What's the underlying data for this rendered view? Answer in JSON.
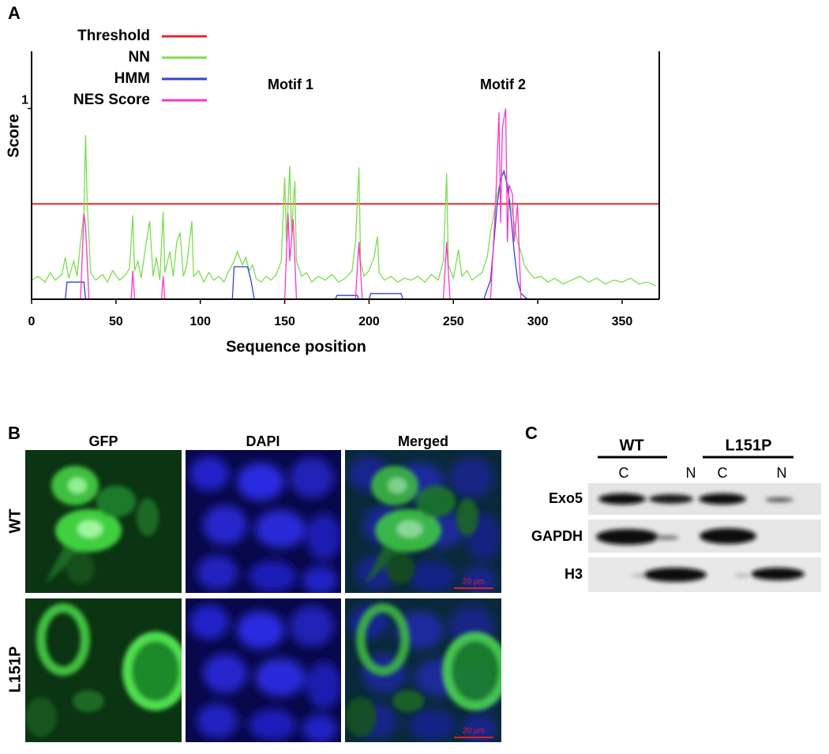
{
  "panel_labels": [
    "A",
    "B",
    "C"
  ],
  "chart_data": {
    "type": "line",
    "xlabel": "Sequence position",
    "ylabel": "Score",
    "xlim": [
      0,
      372
    ],
    "ylim": [
      0,
      1.3
    ],
    "xticks": [
      0,
      50,
      100,
      150,
      200,
      250,
      300,
      350
    ],
    "yticks": [
      1
    ],
    "annotations": [
      "Motif 1",
      "Motif 2"
    ],
    "series": [
      {
        "name": "Threshold",
        "color": "#e8262b",
        "x": [
          0,
          372
        ],
        "values": [
          0.5,
          0.5
        ]
      },
      {
        "name": "NN",
        "color": "#7ddc4f",
        "x": [
          0,
          4,
          8,
          11,
          14,
          18,
          20,
          22,
          25,
          27,
          29,
          31,
          32,
          33,
          35,
          38,
          42,
          45,
          48,
          52,
          55,
          58,
          60,
          61,
          63,
          65,
          68,
          70,
          72,
          74,
          76,
          78,
          79,
          82,
          84,
          86,
          88,
          90,
          92,
          95,
          96,
          99,
          102,
          105,
          108,
          111,
          114,
          117,
          120,
          122,
          125,
          127,
          129,
          131,
          133,
          136,
          139,
          142,
          145,
          148,
          150,
          151,
          153,
          154,
          156,
          157,
          160,
          163,
          166,
          170,
          174,
          178,
          182,
          186,
          190,
          192,
          194,
          195,
          197,
          200,
          203,
          205,
          206,
          209,
          213,
          217,
          221,
          225,
          229,
          233,
          237,
          241,
          244,
          246,
          247,
          250,
          253,
          255,
          258,
          261,
          264,
          267,
          270,
          272,
          274,
          276,
          278,
          280,
          282,
          284,
          286,
          288,
          290,
          292,
          295,
          298,
          302,
          306,
          310,
          315,
          320,
          325,
          330,
          335,
          340,
          345,
          350,
          355,
          360,
          365,
          370
        ],
        "values": [
          0.1,
          0.12,
          0.09,
          0.14,
          0.1,
          0.13,
          0.22,
          0.11,
          0.2,
          0.12,
          0.3,
          0.45,
          0.86,
          0.5,
          0.14,
          0.1,
          0.13,
          0.09,
          0.15,
          0.1,
          0.12,
          0.16,
          0.44,
          0.15,
          0.2,
          0.11,
          0.3,
          0.41,
          0.12,
          0.22,
          0.1,
          0.46,
          0.14,
          0.25,
          0.12,
          0.3,
          0.35,
          0.12,
          0.18,
          0.41,
          0.12,
          0.15,
          0.09,
          0.14,
          0.1,
          0.12,
          0.09,
          0.15,
          0.2,
          0.25,
          0.18,
          0.22,
          0.15,
          0.18,
          0.11,
          0.09,
          0.12,
          0.1,
          0.13,
          0.2,
          0.64,
          0.3,
          0.7,
          0.35,
          0.62,
          0.2,
          0.12,
          0.14,
          0.09,
          0.12,
          0.1,
          0.13,
          0.09,
          0.11,
          0.15,
          0.3,
          0.69,
          0.2,
          0.12,
          0.15,
          0.22,
          0.33,
          0.14,
          0.1,
          0.12,
          0.09,
          0.11,
          0.1,
          0.12,
          0.09,
          0.13,
          0.1,
          0.2,
          0.66,
          0.18,
          0.11,
          0.26,
          0.12,
          0.15,
          0.1,
          0.12,
          0.14,
          0.22,
          0.35,
          0.45,
          0.55,
          0.62,
          0.68,
          0.57,
          0.5,
          0.4,
          0.3,
          0.25,
          0.18,
          0.14,
          0.11,
          0.12,
          0.09,
          0.11,
          0.08,
          0.1,
          0.12,
          0.09,
          0.11,
          0.08,
          0.1,
          0.09,
          0.11,
          0.08,
          0.09,
          0.07
        ]
      },
      {
        "name": "HMM",
        "color": "#3344cc",
        "x": [
          20,
          21,
          31,
          32,
          null,
          119,
          120,
          128,
          130,
          132,
          null,
          180,
          181,
          193,
          194,
          null,
          200,
          201,
          219,
          220,
          null,
          268,
          272,
          274,
          276,
          278,
          280,
          282,
          284,
          286,
          288,
          290,
          294
        ],
        "values": [
          0,
          0.09,
          0.09,
          0,
          null,
          0,
          0.17,
          0.17,
          0.1,
          0,
          null,
          0,
          0.02,
          0.02,
          0,
          null,
          0,
          0.03,
          0.03,
          0,
          null,
          0,
          0.1,
          0.3,
          0.5,
          0.63,
          0.67,
          0.6,
          0.45,
          0.25,
          0.1,
          0.03,
          0
        ]
      },
      {
        "name": "NES Score",
        "color": "#ff33cc",
        "x": [
          29,
          31,
          32,
          34,
          null,
          59,
          60,
          61,
          null,
          77,
          78,
          79,
          null,
          150,
          152,
          153,
          155,
          157,
          null,
          192,
          194,
          196,
          null,
          244,
          246,
          248,
          null,
          272,
          275,
          277,
          278,
          279,
          281,
          282,
          283,
          285,
          286,
          288,
          290
        ],
        "values": [
          0,
          0.45,
          0.38,
          0,
          null,
          0,
          0.15,
          0,
          null,
          0,
          0.12,
          0,
          null,
          0,
          0.45,
          0.2,
          0.42,
          0,
          null,
          0,
          0.3,
          0,
          null,
          0,
          0.3,
          0,
          null,
          0,
          0.5,
          0.98,
          0.4,
          0.9,
          1.0,
          0.3,
          0.6,
          0.55,
          0.3,
          0.5,
          0
        ]
      }
    ]
  },
  "panel_b": {
    "columns": [
      "GFP",
      "DAPI",
      "Merged"
    ],
    "rows": [
      "WT",
      "L151P"
    ],
    "scale_bar": "20 µm"
  },
  "panel_c": {
    "groups": [
      "WT",
      "L151P"
    ],
    "lanes": [
      "C",
      "N",
      "C",
      "N"
    ],
    "rows": [
      "Exo5",
      "GAPDH",
      "H3"
    ]
  }
}
